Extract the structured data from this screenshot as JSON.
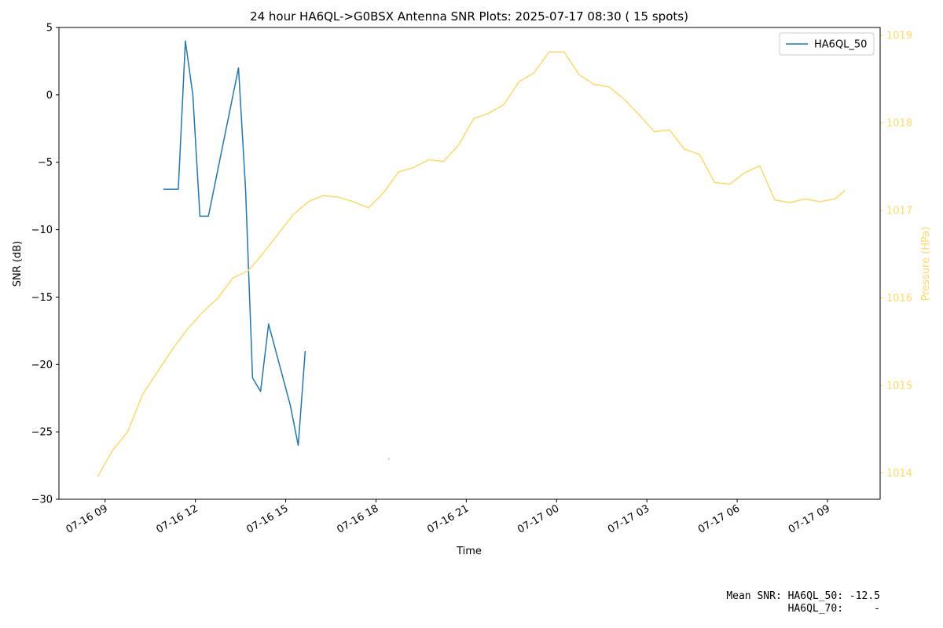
{
  "chart_data": {
    "type": "line",
    "title": "24 hour HA6QL->G0BSX Antenna SNR Plots: 2025-07-17 08:30  ( 15 spots)",
    "xlabel": "Time",
    "ylabel": "SNR (dB)",
    "y2label": "Pressure (HPa)",
    "xlim": [
      "2025-07-16T07:28",
      "2025-07-17T10:45"
    ],
    "xticks": [
      {
        "value": "2025-07-16T09:00",
        "label": "07-16 09"
      },
      {
        "value": "2025-07-16T12:00",
        "label": "07-16 12"
      },
      {
        "value": "2025-07-16T15:00",
        "label": "07-16 15"
      },
      {
        "value": "2025-07-16T18:00",
        "label": "07-16 18"
      },
      {
        "value": "2025-07-16T21:00",
        "label": "07-16 21"
      },
      {
        "value": "2025-07-17T00:00",
        "label": "07-17 00"
      },
      {
        "value": "2025-07-17T03:00",
        "label": "07-17 03"
      },
      {
        "value": "2025-07-17T06:00",
        "label": "07-17 06"
      },
      {
        "value": "2025-07-17T09:00",
        "label": "07-17 09"
      }
    ],
    "ylim": [
      -30,
      5
    ],
    "yticks": [
      {
        "value": -30,
        "label": "−30"
      },
      {
        "value": -25,
        "label": "−25"
      },
      {
        "value": -20,
        "label": "−20"
      },
      {
        "value": -15,
        "label": "−15"
      },
      {
        "value": -10,
        "label": "−10"
      },
      {
        "value": -5,
        "label": "−5"
      },
      0,
      5
    ],
    "y2lim": [
      1013.7,
      1019.09
    ],
    "y2ticks": [
      1014,
      1015,
      1016,
      1017,
      1018,
      1019
    ],
    "legend": "upper right",
    "series": [
      {
        "name": "HA6QL_50",
        "color": "#1f77b4",
        "x": [
          "2025-07-16T10:56",
          "2025-07-16T11:26",
          "2025-07-16T11:40",
          "2025-07-16T11:55",
          "2025-07-16T12:09",
          "2025-07-16T12:26",
          "2025-07-16T13:26",
          "2025-07-16T13:40",
          "2025-07-16T13:54",
          "2025-07-16T14:10",
          "2025-07-16T14:26",
          "2025-07-16T15:09",
          "2025-07-16T15:25",
          "2025-07-16T15:39",
          null,
          "2025-07-16T18:25"
        ],
        "values": [
          -7,
          -7,
          4,
          0,
          -9,
          -9,
          2,
          -7,
          -21,
          -22,
          -17,
          -23,
          -26,
          -19,
          null,
          -27
        ]
      },
      {
        "color": "#ffd966",
        "axis": "y2",
        "x": [
          "2025-07-16T08:45",
          "2025-07-16T09:15",
          "2025-07-16T09:45",
          "2025-07-16T10:15",
          "2025-07-16T10:45",
          "2025-07-16T11:15",
          "2025-07-16T11:45",
          "2025-07-16T12:15",
          "2025-07-16T12:45",
          "2025-07-16T13:15",
          "2025-07-16T13:45",
          "2025-07-16T14:15",
          "2025-07-16T14:45",
          "2025-07-16T15:15",
          "2025-07-16T15:45",
          "2025-07-16T16:15",
          "2025-07-16T16:45",
          "2025-07-16T17:15",
          "2025-07-16T17:45",
          "2025-07-16T18:15",
          "2025-07-16T18:45",
          "2025-07-16T19:15",
          "2025-07-16T19:45",
          "2025-07-16T20:15",
          "2025-07-16T20:45",
          "2025-07-16T21:15",
          "2025-07-16T21:45",
          "2025-07-16T22:15",
          "2025-07-16T22:45",
          "2025-07-16T23:15",
          "2025-07-16T23:45",
          "2025-07-17T00:15",
          "2025-07-17T00:45",
          "2025-07-17T01:15",
          "2025-07-17T01:45",
          "2025-07-17T02:15",
          "2025-07-17T02:45",
          "2025-07-17T03:15",
          "2025-07-17T03:45",
          "2025-07-17T04:15",
          "2025-07-17T04:45",
          "2025-07-17T05:15",
          "2025-07-17T05:45",
          "2025-07-17T06:15",
          "2025-07-17T06:45",
          "2025-07-17T07:15",
          "2025-07-17T07:45",
          "2025-07-17T08:15",
          "2025-07-17T08:45",
          "2025-07-17T09:15",
          "2025-07-17T09:35"
        ],
        "values": [
          1013.96,
          1014.26,
          1014.47,
          1014.9,
          1015.16,
          1015.42,
          1015.65,
          1015.84,
          1016.0,
          1016.23,
          1016.31,
          1016.51,
          1016.73,
          1016.95,
          1017.1,
          1017.17,
          1017.15,
          1017.1,
          1017.03,
          1017.2,
          1017.44,
          1017.49,
          1017.58,
          1017.56,
          1017.75,
          1018.05,
          1018.11,
          1018.21,
          1018.47,
          1018.57,
          1018.81,
          1018.81,
          1018.55,
          1018.44,
          1018.41,
          1018.27,
          1018.09,
          1017.9,
          1017.92,
          1017.7,
          1017.64,
          1017.32,
          1017.3,
          1017.43,
          1017.51,
          1017.12,
          1017.09,
          1017.13,
          1017.1,
          1017.13,
          1017.23
        ]
      }
    ],
    "footer": [
      "Mean SNR: HA6QL_50: -12.5",
      "HA6QL_70:     -"
    ]
  }
}
